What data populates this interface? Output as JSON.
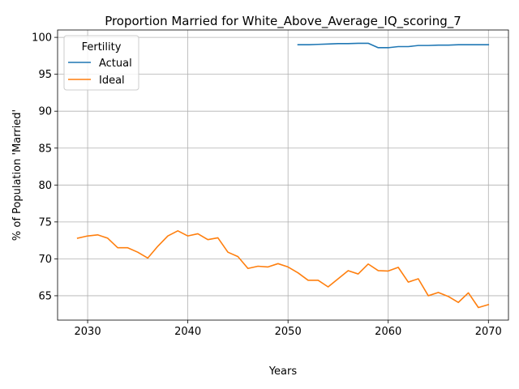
{
  "chart_data": {
    "type": "line",
    "title": "Proportion Married for White_Above_Average_IQ_scoring_7",
    "xlabel": "Years",
    "ylabel": "% of Population 'Married'",
    "xlim": [
      2027,
      2072
    ],
    "ylim": [
      61.7,
      101.0
    ],
    "xticks": [
      2030,
      2040,
      2050,
      2060,
      2070
    ],
    "yticks": [
      65,
      70,
      75,
      80,
      85,
      90,
      95,
      100
    ],
    "grid": true,
    "legend": {
      "title": "Fertility",
      "placement": "upper-left"
    },
    "series": [
      {
        "name": "Actual",
        "color": "#1f77b4",
        "x": [
          2051,
          2052,
          2053,
          2054,
          2055,
          2056,
          2057,
          2058,
          2059,
          2060,
          2061,
          2062,
          2063,
          2064,
          2065,
          2066,
          2067,
          2068,
          2069,
          2070
        ],
        "y": [
          99.0,
          99.0,
          99.05,
          99.1,
          99.15,
          99.15,
          99.2,
          99.2,
          98.6,
          98.6,
          98.75,
          98.75,
          98.9,
          98.9,
          98.95,
          98.95,
          99.0,
          99.0,
          99.0,
          99.0
        ]
      },
      {
        "name": "Ideal",
        "color": "#ff7f0e",
        "x": [
          2029,
          2030,
          2031,
          2032,
          2033,
          2034,
          2035,
          2036,
          2037,
          2038,
          2039,
          2040,
          2041,
          2042,
          2043,
          2044,
          2045,
          2046,
          2047,
          2048,
          2049,
          2050,
          2051,
          2052,
          2053,
          2054,
          2055,
          2056,
          2057,
          2058,
          2059,
          2060,
          2061,
          2062,
          2063,
          2064,
          2065,
          2066,
          2067,
          2068,
          2069,
          2070
        ],
        "y": [
          72.8,
          73.1,
          73.25,
          72.8,
          71.5,
          71.5,
          70.9,
          70.1,
          71.7,
          73.1,
          73.8,
          73.1,
          73.4,
          72.6,
          72.85,
          70.9,
          70.3,
          68.7,
          69.0,
          68.9,
          69.35,
          68.9,
          68.1,
          67.1,
          67.1,
          66.2,
          67.3,
          68.4,
          67.95,
          69.3,
          68.4,
          68.35,
          68.85,
          66.85,
          67.3,
          65.0,
          65.45,
          64.9,
          64.1,
          65.4,
          63.4,
          63.8
        ]
      }
    ]
  }
}
